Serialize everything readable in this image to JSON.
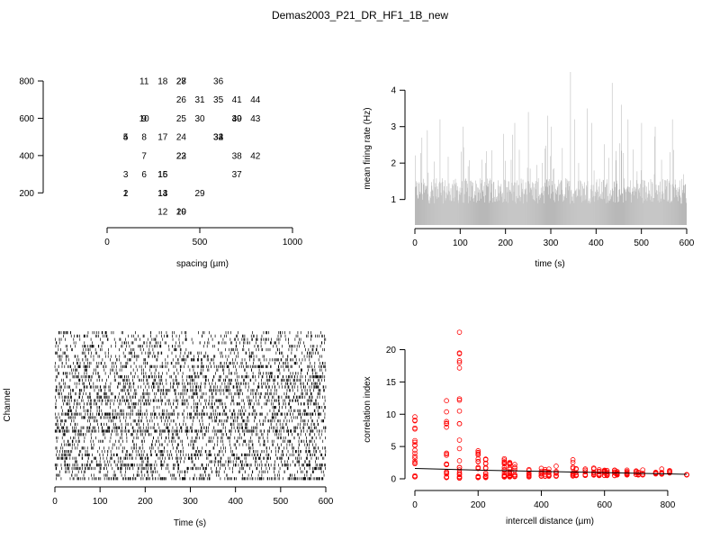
{
  "title": "Demas2003_P21_DR_HF1_1B_new",
  "colors": {
    "firing": "#b8b8b8",
    "corr": "#ff0000",
    "axis": "#000000"
  },
  "chart_data": [
    {
      "type": "scatter",
      "id": "electrode-layout",
      "xlabel": "spacing (µm)",
      "ylabel": "",
      "xlim": [
        0,
        1000
      ],
      "ylim": [
        100,
        800
      ],
      "xticks": [
        0,
        500,
        1000
      ],
      "yticks": [
        200,
        400,
        600,
        800
      ],
      "points": [
        {
          "x": 100,
          "y": 500,
          "label": "4"
        },
        {
          "x": 100,
          "y": 500,
          "label": "5"
        },
        {
          "x": 100,
          "y": 300,
          "label": "3"
        },
        {
          "x": 100,
          "y": 200,
          "label": "1"
        },
        {
          "x": 100,
          "y": 200,
          "label": "2"
        },
        {
          "x": 200,
          "y": 600,
          "label": "9"
        },
        {
          "x": 200,
          "y": 600,
          "label": "10"
        },
        {
          "x": 200,
          "y": 800,
          "label": "11"
        },
        {
          "x": 200,
          "y": 500,
          "label": "8"
        },
        {
          "x": 200,
          "y": 400,
          "label": "7"
        },
        {
          "x": 200,
          "y": 300,
          "label": "6"
        },
        {
          "x": 300,
          "y": 800,
          "label": "18"
        },
        {
          "x": 300,
          "y": 500,
          "label": "17"
        },
        {
          "x": 300,
          "y": 300,
          "label": "15"
        },
        {
          "x": 300,
          "y": 300,
          "label": "16"
        },
        {
          "x": 300,
          "y": 200,
          "label": "13"
        },
        {
          "x": 300,
          "y": 200,
          "label": "14"
        },
        {
          "x": 300,
          "y": 100,
          "label": "12"
        },
        {
          "x": 400,
          "y": 800,
          "label": "27"
        },
        {
          "x": 400,
          "y": 800,
          "label": "28"
        },
        {
          "x": 400,
          "y": 700,
          "label": "26"
        },
        {
          "x": 400,
          "y": 600,
          "label": "25"
        },
        {
          "x": 400,
          "y": 500,
          "label": "24"
        },
        {
          "x": 400,
          "y": 400,
          "label": "22"
        },
        {
          "x": 400,
          "y": 400,
          "label": "23"
        },
        {
          "x": 400,
          "y": 100,
          "label": "19"
        },
        {
          "x": 400,
          "y": 100,
          "label": "20"
        },
        {
          "x": 500,
          "y": 700,
          "label": "31"
        },
        {
          "x": 500,
          "y": 600,
          "label": "30"
        },
        {
          "x": 500,
          "y": 200,
          "label": "29"
        },
        {
          "x": 600,
          "y": 800,
          "label": "36"
        },
        {
          "x": 600,
          "y": 700,
          "label": "35"
        },
        {
          "x": 600,
          "y": 500,
          "label": "32"
        },
        {
          "x": 600,
          "y": 500,
          "label": "33"
        },
        {
          "x": 600,
          "y": 500,
          "label": "34"
        },
        {
          "x": 700,
          "y": 700,
          "label": "41"
        },
        {
          "x": 700,
          "y": 600,
          "label": "39"
        },
        {
          "x": 700,
          "y": 600,
          "label": "40"
        },
        {
          "x": 700,
          "y": 400,
          "label": "38"
        },
        {
          "x": 700,
          "y": 300,
          "label": "37"
        },
        {
          "x": 800,
          "y": 700,
          "label": "44"
        },
        {
          "x": 800,
          "y": 600,
          "label": "43"
        },
        {
          "x": 800,
          "y": 400,
          "label": "42"
        }
      ]
    },
    {
      "type": "area",
      "id": "mean-firing-rate",
      "xlabel": "time (s)",
      "ylabel": "mean firing rate (Hz)",
      "xlim": [
        0,
        600
      ],
      "ylim": [
        0.3,
        4.5
      ],
      "xticks": [
        0,
        100,
        200,
        300,
        400,
        500,
        600
      ],
      "yticks": [
        1,
        2,
        3,
        4
      ],
      "bin_seconds": 1,
      "mean_rate": 1.2,
      "peaks": [
        {
          "x": 15,
          "y": 2.7
        },
        {
          "x": 27,
          "y": 2.9
        },
        {
          "x": 55,
          "y": 3.2
        },
        {
          "x": 106,
          "y": 3.0
        },
        {
          "x": 195,
          "y": 2.8
        },
        {
          "x": 220,
          "y": 3.1
        },
        {
          "x": 250,
          "y": 3.4
        },
        {
          "x": 293,
          "y": 3.3
        },
        {
          "x": 300,
          "y": 3.0
        },
        {
          "x": 343,
          "y": 4.5
        },
        {
          "x": 352,
          "y": 3.2
        },
        {
          "x": 380,
          "y": 3.5
        },
        {
          "x": 390,
          "y": 3.1
        },
        {
          "x": 435,
          "y": 4.2
        },
        {
          "x": 455,
          "y": 3.6
        },
        {
          "x": 470,
          "y": 3.2
        },
        {
          "x": 500,
          "y": 3.1
        },
        {
          "x": 530,
          "y": 3.0
        },
        {
          "x": 568,
          "y": 3.2
        }
      ]
    },
    {
      "type": "raster",
      "id": "spike-raster",
      "xlabel": "Time (s)",
      "ylabel": "Channel",
      "xlim": [
        0,
        600
      ],
      "xticks": [
        0,
        100,
        200,
        300,
        400,
        500,
        600
      ],
      "channels": 44
    },
    {
      "type": "scatter",
      "id": "correlation-index",
      "xlabel": "intercell distance (µm)",
      "ylabel": "correlation index",
      "xlim": [
        0,
        860
      ],
      "ylim": [
        0,
        23
      ],
      "xticks": [
        0,
        200,
        400,
        600,
        800
      ],
      "yticks": [
        0,
        5,
        10,
        15,
        20
      ],
      "distances": [
        0,
        100,
        141,
        200,
        224,
        283,
        300,
        316,
        361,
        400,
        412,
        424,
        447,
        500,
        510,
        539,
        566,
        583,
        600,
        608,
        632,
        640,
        671,
        700,
        707,
        721,
        762,
        781,
        806,
        860
      ],
      "column_ranges": [
        [
          0.3,
          9.8
        ],
        [
          0.2,
          12.1
        ],
        [
          0.1,
          22.7
        ],
        [
          0.2,
          4.6
        ],
        [
          0.2,
          3.4
        ],
        [
          0.3,
          3.3
        ],
        [
          0.3,
          2.6
        ],
        [
          0.3,
          2.4
        ],
        [
          0.3,
          2.0
        ],
        [
          0.4,
          1.9
        ],
        [
          0.4,
          1.8
        ],
        [
          0.4,
          1.7
        ],
        [
          0.4,
          2.2
        ],
        [
          0.4,
          3.3
        ],
        [
          0.5,
          1.9
        ],
        [
          0.5,
          1.6
        ],
        [
          0.5,
          1.7
        ],
        [
          0.5,
          1.5
        ],
        [
          0.5,
          1.4
        ],
        [
          0.5,
          1.3
        ],
        [
          0.5,
          1.5
        ],
        [
          0.6,
          1.2
        ],
        [
          0.6,
          1.4
        ],
        [
          0.6,
          1.5
        ],
        [
          0.6,
          1.3
        ],
        [
          0.6,
          1.4
        ],
        [
          0.7,
          1.2
        ],
        [
          0.7,
          1.6
        ],
        [
          0.8,
          1.3
        ],
        [
          0.6,
          0.7
        ]
      ],
      "outliers": [
        {
          "x": 141,
          "y": 22.7
        },
        {
          "x": 141,
          "y": 18.0
        },
        {
          "x": 100,
          "y": 12.1
        }
      ],
      "fit": [
        {
          "x": 0,
          "y": 1.6
        },
        {
          "x": 200,
          "y": 1.35
        },
        {
          "x": 400,
          "y": 1.15
        },
        {
          "x": 600,
          "y": 0.95
        },
        {
          "x": 860,
          "y": 0.7
        }
      ]
    }
  ]
}
